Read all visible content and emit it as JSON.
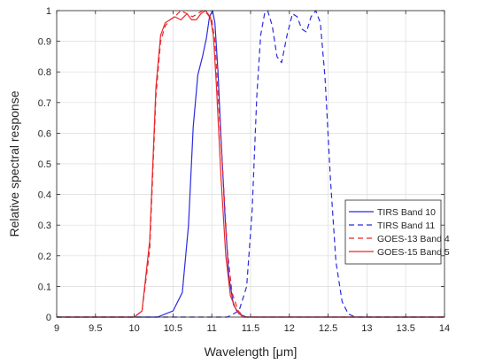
{
  "chart_data": {
    "type": "line",
    "title": "",
    "xlabel": "Wavelength [μm]",
    "ylabel": "Relative spectral response",
    "xlim": [
      9,
      14
    ],
    "ylim": [
      0,
      1
    ],
    "xticks": [
      "9",
      "9.5",
      "10",
      "10.5",
      "11",
      "11.5",
      "12",
      "12.5",
      "13",
      "13.5",
      "14"
    ],
    "yticks": [
      "0",
      "0.1",
      "0.2",
      "0.3",
      "0.4",
      "0.5",
      "0.6",
      "0.7",
      "0.8",
      "0.9",
      "1"
    ],
    "grid": true,
    "legend_position": "bottom-right",
    "series": [
      {
        "name": "TIRS Band 10",
        "color": "#2b2bde",
        "style": "solid",
        "x": [
          9.0,
          10.3,
          10.5,
          10.62,
          10.7,
          10.76,
          10.82,
          10.88,
          10.93,
          10.97,
          11.01,
          11.04,
          11.08,
          11.12,
          11.17,
          11.22,
          11.28,
          11.35,
          11.45,
          14.0
        ],
        "y": [
          0.0,
          0.0,
          0.02,
          0.08,
          0.3,
          0.62,
          0.79,
          0.85,
          0.91,
          0.98,
          1.0,
          0.96,
          0.8,
          0.58,
          0.33,
          0.13,
          0.04,
          0.01,
          0.0,
          0.0
        ]
      },
      {
        "name": "TIRS Band 11",
        "color": "#2b2bde",
        "style": "dashed",
        "x": [
          9.0,
          11.2,
          11.35,
          11.45,
          11.52,
          11.58,
          11.63,
          11.68,
          11.72,
          11.78,
          11.84,
          11.9,
          11.97,
          12.04,
          12.1,
          12.16,
          12.22,
          12.28,
          12.34,
          12.4,
          12.46,
          12.53,
          12.6,
          12.68,
          12.76,
          12.85,
          14.0
        ],
        "y": [
          0.0,
          0.0,
          0.02,
          0.1,
          0.35,
          0.72,
          0.92,
          0.99,
          1.0,
          0.95,
          0.85,
          0.83,
          0.92,
          0.99,
          0.98,
          0.94,
          0.93,
          0.98,
          1.0,
          0.96,
          0.78,
          0.45,
          0.18,
          0.05,
          0.01,
          0.0,
          0.0
        ]
      },
      {
        "name": "GOES-13 Band 4",
        "color": "#e8282e",
        "style": "dashed",
        "x": [
          9.0,
          10.0,
          10.1,
          10.2,
          10.28,
          10.34,
          10.4,
          10.46,
          10.52,
          10.6,
          10.68,
          10.75,
          10.82,
          10.88,
          10.94,
          11.0,
          11.04,
          11.08,
          11.14,
          11.2,
          11.26,
          11.34,
          11.42,
          14.0
        ],
        "y": [
          0.0,
          0.0,
          0.02,
          0.22,
          0.72,
          0.9,
          0.95,
          0.97,
          0.98,
          1.0,
          0.99,
          0.98,
          0.99,
          1.0,
          0.99,
          0.97,
          0.9,
          0.73,
          0.48,
          0.22,
          0.08,
          0.02,
          0.0,
          0.0
        ]
      },
      {
        "name": "GOES-15 Band 5",
        "color": "#e8282e",
        "style": "solid",
        "x": [
          9.0,
          10.0,
          10.1,
          10.2,
          10.28,
          10.34,
          10.4,
          10.46,
          10.52,
          10.6,
          10.68,
          10.74,
          10.8,
          10.86,
          10.92,
          10.98,
          11.02,
          11.06,
          11.12,
          11.18,
          11.24,
          11.32,
          11.4,
          14.0
        ],
        "y": [
          0.0,
          0.0,
          0.02,
          0.25,
          0.75,
          0.92,
          0.96,
          0.97,
          0.98,
          0.97,
          0.99,
          0.97,
          0.97,
          0.99,
          1.0,
          0.98,
          0.92,
          0.75,
          0.45,
          0.2,
          0.07,
          0.02,
          0.0,
          0.0
        ]
      }
    ]
  }
}
